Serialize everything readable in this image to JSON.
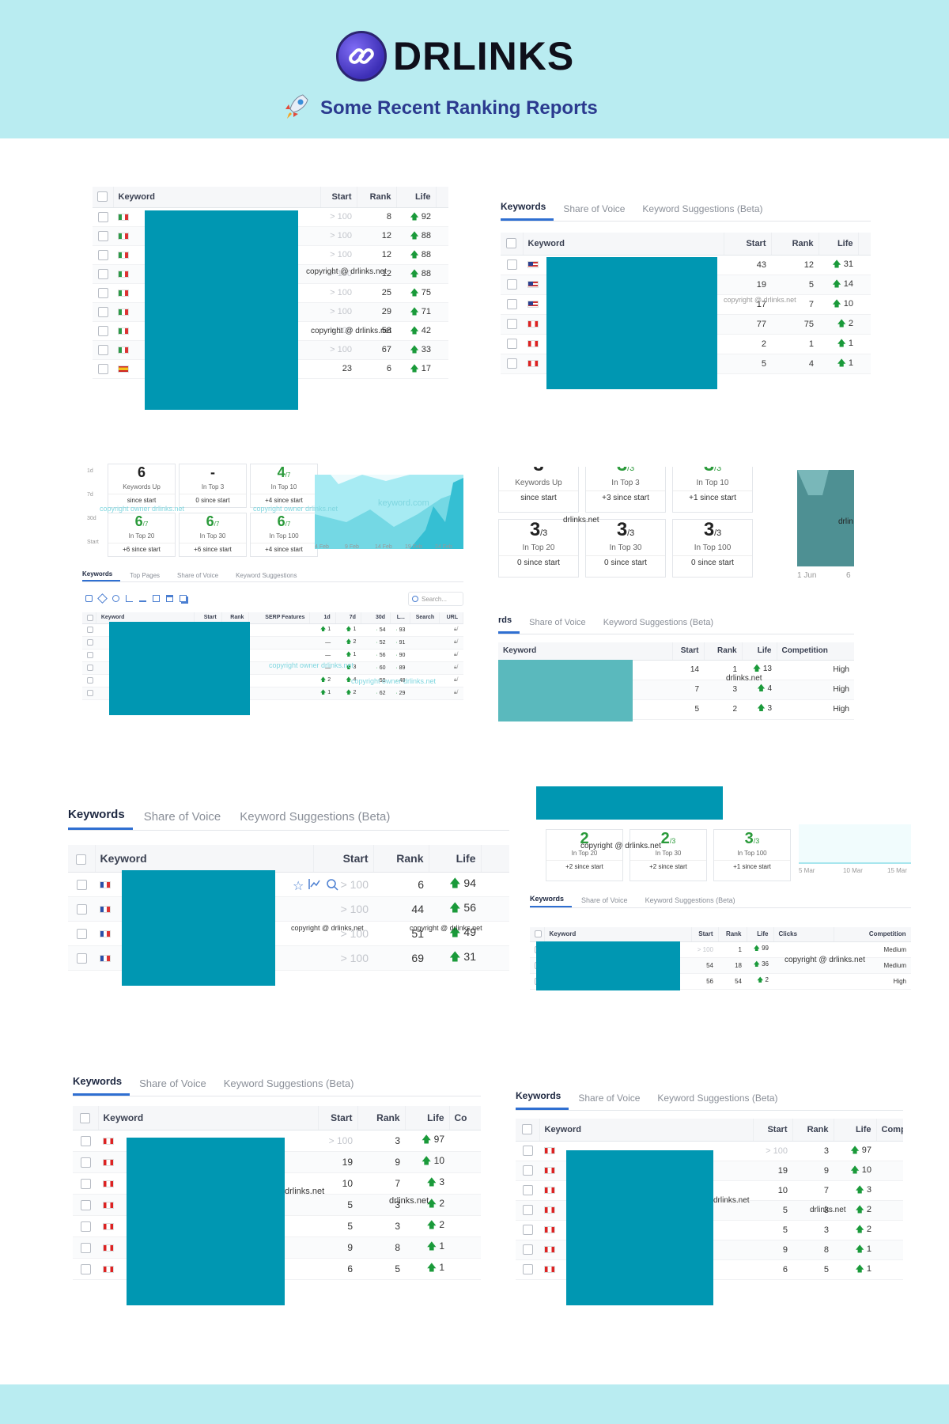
{
  "header": {
    "brand": "DRLINKS",
    "subtitle": "Some Recent Ranking Reports",
    "logo_icon": "link-icon",
    "rocket_icon": "rocket-icon"
  },
  "colors": {
    "header_bg": "#b9ecf1",
    "redaction": "#0097b2",
    "up": "#1a9a3a",
    "accent_tab": "#2f6fd1"
  },
  "common": {
    "tabs": [
      "Keywords",
      "Share of Voice",
      "Keyword Suggestions (Beta)"
    ],
    "watermark": "copyright @ drlinks.net",
    "watermark_short": "drlinks.net",
    "watermark_owner": "copyright owner drlinks.net"
  },
  "p1": {
    "headers": [
      "Keyword",
      "Start",
      "Rank",
      "Life"
    ],
    "rows": [
      {
        "flag": "it",
        "start": "> 100",
        "rank": "8",
        "life": "92"
      },
      {
        "flag": "it",
        "start": "> 100",
        "rank": "12",
        "life": "88"
      },
      {
        "flag": "it",
        "start": "> 100",
        "rank": "12",
        "life": "88"
      },
      {
        "flag": "it",
        "start": "> 100",
        "rank": "12",
        "life": "88"
      },
      {
        "flag": "it",
        "start": "> 100",
        "rank": "25",
        "life": "75"
      },
      {
        "flag": "it",
        "start": "> 100",
        "rank": "29",
        "life": "71"
      },
      {
        "flag": "it",
        "start": "> 100",
        "rank": "58",
        "life": "42"
      },
      {
        "flag": "it",
        "start": "> 100",
        "rank": "67",
        "life": "33"
      },
      {
        "flag": "es",
        "start": "23",
        "rank": "6",
        "life": "17"
      }
    ]
  },
  "p2": {
    "headers": [
      "Keyword",
      "Start",
      "Rank",
      "Life"
    ],
    "rows": [
      {
        "flag": "us",
        "start": "43",
        "rank": "12",
        "life": "31"
      },
      {
        "flag": "us",
        "start": "19",
        "rank": "5",
        "life": "14"
      },
      {
        "flag": "us",
        "start": "17",
        "rank": "7",
        "life": "10"
      },
      {
        "flag": "ca",
        "start": "77",
        "rank": "75",
        "life": "2"
      },
      {
        "flag": "ca",
        "start": "2",
        "rank": "1",
        "life": "1"
      },
      {
        "flag": "ca",
        "start": "5",
        "rank": "4",
        "life": "1"
      }
    ]
  },
  "p3": {
    "periods": [
      "1d",
      "7d",
      "30d",
      "Start"
    ],
    "stats": [
      {
        "value": "6",
        "of": "",
        "label": "Keywords Up",
        "since": "since start"
      },
      {
        "value": "-",
        "of": "",
        "label": "In Top 3",
        "since": "0 since start"
      },
      {
        "value": "4",
        "of": "/7",
        "label": "In Top 10",
        "since": "+4 since start"
      },
      {
        "value": "6",
        "of": "/7",
        "label": "In Top 20",
        "since": "+6 since start"
      },
      {
        "value": "6",
        "of": "/7",
        "label": "In Top 30",
        "since": "+6 since start"
      },
      {
        "value": "6",
        "of": "/7",
        "label": "In Top 100",
        "since": "+4 since start"
      }
    ],
    "chart_x": [
      "4 Feb",
      "9 Feb",
      "14 Feb",
      "19 Feb",
      "24 Feb"
    ],
    "chart_watermark": "keyword.com",
    "tabs": [
      "Keywords",
      "Top Pages",
      "Share of Voice",
      "Keyword Suggestions"
    ],
    "search_placeholder": "Search...",
    "headers": [
      "Keyword",
      "Start",
      "Rank",
      "SERP Features",
      "1d",
      "7d",
      "30d",
      "L...",
      "Search",
      "URL"
    ],
    "rows": [
      {
        "d1": "1",
        "d7": "1",
        "d30": "54",
        "life": "93"
      },
      {
        "d1": "—",
        "d7": "2",
        "d30": "52",
        "life": "91"
      },
      {
        "d1": "—",
        "d7": "1",
        "d30": "56",
        "life": "90"
      },
      {
        "d1": "—",
        "d7": "3",
        "d30": "60",
        "life": "89"
      },
      {
        "d1": "2",
        "d7": "4",
        "d30": "59",
        "life": "48"
      },
      {
        "d1": "1",
        "d7": "2",
        "d30": "62",
        "life": "29"
      }
    ]
  },
  "p4": {
    "stats_top": [
      {
        "value": "3",
        "of": "",
        "label": "Keywords Up",
        "since": "since start"
      },
      {
        "value": "3",
        "of": "/3",
        "label": "In Top 3",
        "since": "+3 since start"
      },
      {
        "value": "3",
        "of": "/3",
        "label": "In Top 10",
        "since": "+1 since start"
      }
    ],
    "stats_bottom": [
      {
        "value": "3",
        "of": "/3",
        "label": "In Top 20",
        "since": "0 since start"
      },
      {
        "value": "3",
        "of": "/3",
        "label": "In Top 30",
        "since": "0 since start"
      },
      {
        "value": "3",
        "of": "/3",
        "label": "In Top 100",
        "since": "0 since start"
      }
    ],
    "chart_x": [
      "1 Jun",
      "6"
    ],
    "chart_watermark": "drlin",
    "tabs": [
      "rds",
      "Share of Voice",
      "Keyword Suggestions (Beta)"
    ],
    "headers": [
      "Keyword",
      "Start",
      "Rank",
      "Life",
      "Competition"
    ],
    "rows": [
      {
        "start": "14",
        "rank": "1",
        "life": "13",
        "competition": "High"
      },
      {
        "start": "7",
        "rank": "3",
        "life": "4",
        "competition": "High"
      },
      {
        "start": "5",
        "rank": "2",
        "life": "3",
        "competition": "High"
      }
    ]
  },
  "p5": {
    "headers": [
      "Keyword",
      "Start",
      "Rank",
      "Life"
    ],
    "rows": [
      {
        "flag": "fr",
        "start": "> 100",
        "rank": "6",
        "life": "94"
      },
      {
        "flag": "fr",
        "start": "> 100",
        "rank": "44",
        "life": "56"
      },
      {
        "flag": "fr",
        "start": "> 100",
        "rank": "51",
        "life": "49"
      },
      {
        "flag": "fr",
        "start": "> 100",
        "rank": "69",
        "life": "31"
      }
    ],
    "row_icons": [
      "star-icon",
      "trend-icon",
      "search-icon"
    ]
  },
  "p6": {
    "stats": [
      {
        "value": "2",
        "of": "",
        "label": "In Top 20",
        "since": "+2 since start"
      },
      {
        "value": "2",
        "of": "/3",
        "label": "In Top 30",
        "since": "+2 since start"
      },
      {
        "value": "3",
        "of": "/3",
        "label": "In Top 100",
        "since": "+1 since start"
      }
    ],
    "chart_x": [
      "5 Mar",
      "10 Mar",
      "15 Mar"
    ],
    "headers": [
      "Keyword",
      "Start",
      "Rank",
      "Life",
      "Clicks",
      "Competition"
    ],
    "rows": [
      {
        "start": "> 100",
        "rank": "1",
        "life": "99",
        "competition": "Medium"
      },
      {
        "start": "54",
        "rank": "18",
        "life": "36",
        "competition": "Medium"
      },
      {
        "start": "56",
        "rank": "54",
        "life": "2",
        "competition": "High"
      }
    ]
  },
  "p7": {
    "headers": [
      "Keyword",
      "Start",
      "Rank",
      "Life",
      "Co"
    ],
    "rows": [
      {
        "flag": "ca",
        "start": "> 100",
        "rank": "3",
        "life": "97"
      },
      {
        "flag": "ca",
        "start": "19",
        "rank": "9",
        "life": "10"
      },
      {
        "flag": "ca",
        "start": "10",
        "rank": "7",
        "life": "3"
      },
      {
        "flag": "ca",
        "start": "5",
        "rank": "3",
        "life": "2"
      },
      {
        "flag": "ca",
        "start": "5",
        "rank": "3",
        "life": "2"
      },
      {
        "flag": "ca",
        "start": "9",
        "rank": "8",
        "life": "1"
      },
      {
        "flag": "ca",
        "start": "6",
        "rank": "5",
        "life": "1"
      }
    ]
  },
  "p8": {
    "headers": [
      "Keyword",
      "Start",
      "Rank",
      "Life",
      "Comp"
    ],
    "rows": [
      {
        "flag": "ca",
        "start": "> 100",
        "rank": "3",
        "life": "97"
      },
      {
        "flag": "ca",
        "start": "19",
        "rank": "9",
        "life": "10"
      },
      {
        "flag": "ca",
        "start": "10",
        "rank": "7",
        "life": "3"
      },
      {
        "flag": "ca",
        "start": "5",
        "rank": "3",
        "life": "2"
      },
      {
        "flag": "ca",
        "start": "5",
        "rank": "3",
        "life": "2"
      },
      {
        "flag": "ca",
        "start": "9",
        "rank": "8",
        "life": "1"
      },
      {
        "flag": "ca",
        "start": "6",
        "rank": "5",
        "life": "1"
      }
    ]
  }
}
